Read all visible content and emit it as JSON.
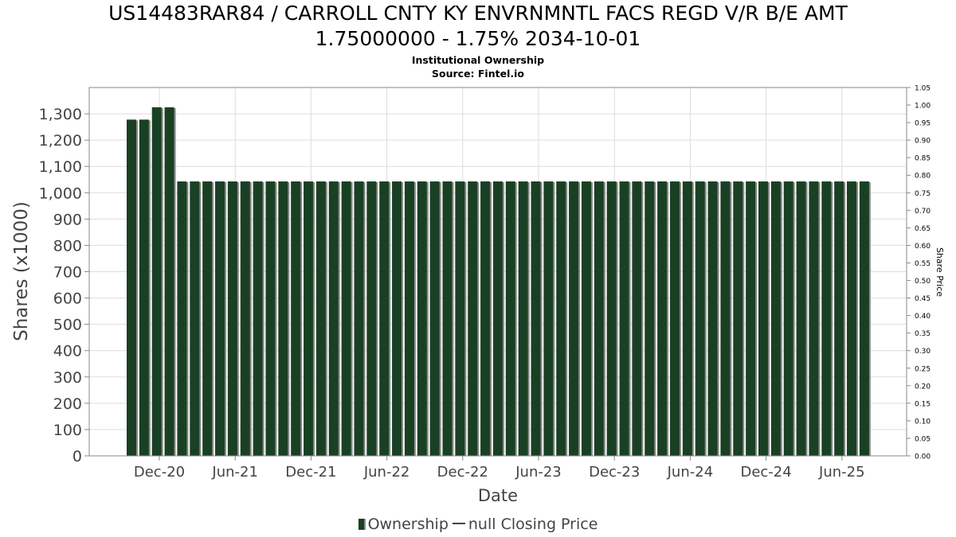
{
  "title_line1": "US14483RAR84 / CARROLL CNTY KY ENVRNMNTL FACS REGD V/R B/E AMT",
  "title_line2": "1.75000000 - 1.75% 2034-10-01",
  "subtitle": "Institutional Ownership",
  "source": "Source: Fintel.io",
  "legend": {
    "ownership": "Ownership",
    "closing_price": "null Closing Price"
  },
  "colors": {
    "bar": "#1a4024",
    "bar_shadow": "#8a8a8a",
    "grid": "#dddddd",
    "axis": "#888888"
  },
  "chart_data": {
    "type": "bar",
    "xlabel": "Date",
    "ylabel": "Shares (x1000)",
    "y2label": "Share Price",
    "ylim": [
      0,
      1400
    ],
    "yticks": [
      0,
      100,
      200,
      300,
      400,
      500,
      600,
      700,
      800,
      900,
      1000,
      1100,
      1200,
      1300
    ],
    "ytick_labels": [
      "0",
      "100",
      "200",
      "300",
      "400",
      "500",
      "600",
      "700",
      "800",
      "900",
      "1,000",
      "1,100",
      "1,200",
      "1,300"
    ],
    "y2lim": [
      0,
      1.05
    ],
    "y2ticks": [
      "0.00",
      "0.05",
      "0.10",
      "0.15",
      "0.20",
      "0.25",
      "0.30",
      "0.35",
      "0.40",
      "0.45",
      "0.50",
      "0.55",
      "0.60",
      "0.65",
      "0.70",
      "0.75",
      "0.80",
      "0.85",
      "0.90",
      "0.95",
      "1.00",
      "1.05"
    ],
    "x_ticks": [
      "Dec-20",
      "Jun-21",
      "Dec-21",
      "Jun-22",
      "Dec-22",
      "Jun-23",
      "Dec-23",
      "Jun-24",
      "Dec-24",
      "Jun-25"
    ],
    "grid": true,
    "legend_position": "bottom",
    "series": [
      {
        "name": "Ownership",
        "values": [
          1278,
          1278,
          1325,
          1325,
          1043,
          1043,
          1043,
          1043,
          1043,
          1043,
          1043,
          1043,
          1043,
          1043,
          1043,
          1043,
          1043,
          1043,
          1043,
          1043,
          1043,
          1043,
          1043,
          1043,
          1043,
          1043,
          1043,
          1043,
          1043,
          1043,
          1043,
          1043,
          1043,
          1043,
          1043,
          1043,
          1043,
          1043,
          1043,
          1043,
          1043,
          1043,
          1043,
          1043,
          1043,
          1043,
          1043,
          1043,
          1043,
          1043,
          1043,
          1043,
          1043,
          1043,
          1043,
          1043,
          1043,
          1043,
          1043
        ]
      },
      {
        "name": "null Closing Price",
        "values": []
      }
    ]
  }
}
